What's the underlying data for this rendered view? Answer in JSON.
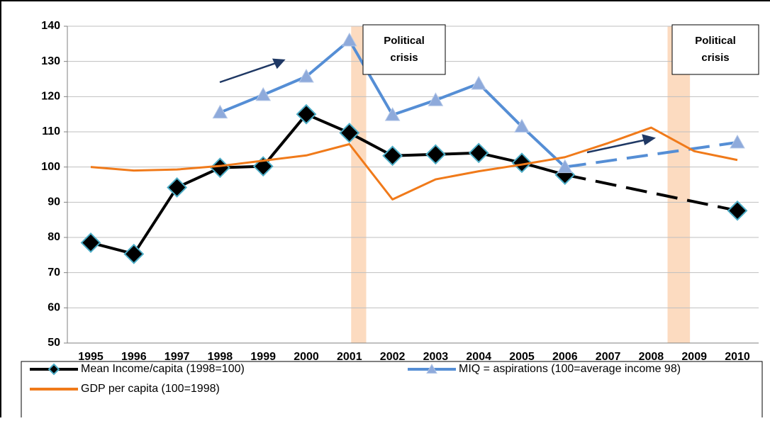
{
  "chart_data": {
    "type": "line",
    "categories": [
      "1995",
      "1996",
      "1997",
      "1998",
      "1999",
      "2000",
      "2001",
      "2002",
      "2003",
      "2004",
      "2005",
      "2006",
      "2007",
      "2008",
      "2009",
      "2010"
    ],
    "series": [
      {
        "name": "Mean Income/capita (1998=100)",
        "color": "#000000",
        "marker": "diamond",
        "gap_style": "dashed",
        "values": [
          78.5,
          75.3,
          94.2,
          99.8,
          100.2,
          115,
          109.7,
          103.2,
          103.6,
          104,
          101.2,
          97.8,
          null,
          null,
          null,
          87.6
        ]
      },
      {
        "name": "MIQ = aspirations (100=average income 98)",
        "color": "#558ed5",
        "marker": "triangle",
        "gap_style": "dashed",
        "values": [
          null,
          null,
          null,
          115.5,
          120.5,
          125.7,
          136,
          114.8,
          119,
          123.7,
          111.5,
          100,
          null,
          null,
          null,
          107
        ]
      },
      {
        "name": "GDP per capita (100=1998)",
        "color": "#f07a1a",
        "marker": "none",
        "values": [
          100,
          99,
          99.3,
          100.3,
          101.8,
          103.3,
          106.5,
          90.8,
          96.5,
          98.8,
          100.7,
          102.8,
          106.8,
          111.2,
          104.5,
          102
        ]
      }
    ],
    "crisis_bands": [
      {
        "from": 2001.04,
        "to": 2001.39,
        "label": [
          "Political",
          "crisis"
        ]
      },
      {
        "from": 2008.38,
        "to": 2008.9,
        "label": [
          "Political",
          "crisis"
        ]
      }
    ],
    "ylim": [
      50,
      140
    ],
    "yticks": [
      50,
      60,
      70,
      80,
      90,
      100,
      110,
      120,
      130,
      140
    ],
    "grid": true,
    "legend": "bottom"
  }
}
